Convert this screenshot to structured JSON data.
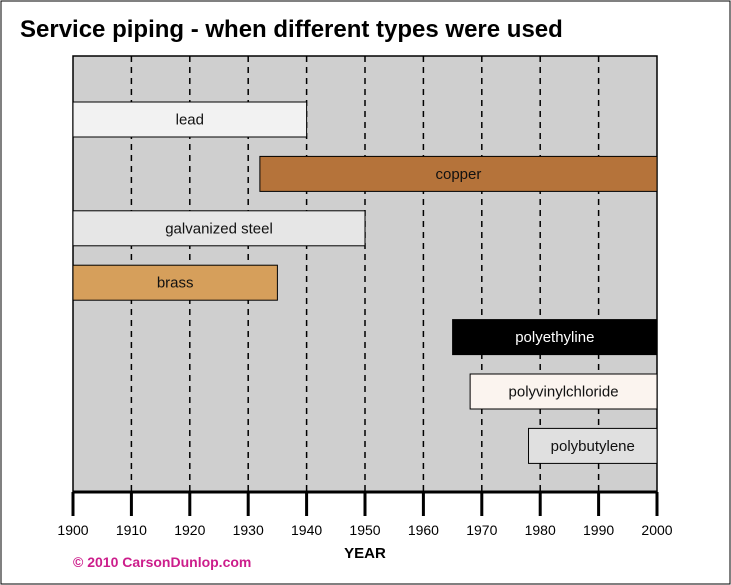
{
  "chart_data": {
    "type": "gantt",
    "title": "Service piping - when different types were used",
    "xlabel": "YEAR",
    "xlim": [
      1900,
      2000
    ],
    "xticks": [
      1900,
      1910,
      1920,
      1930,
      1940,
      1950,
      1960,
      1970,
      1980,
      1990,
      2000
    ],
    "grid": "vertical-dashed",
    "bars": [
      {
        "label": "lead",
        "start": 1900,
        "end": 1940,
        "color": "#f2f2f2",
        "text_color": "#111111"
      },
      {
        "label": "copper",
        "start": 1932,
        "end": 2000,
        "color": "#b5733a",
        "text_color": "#111111"
      },
      {
        "label": "galvanized steel",
        "start": 1900,
        "end": 1950,
        "color": "#e6e6e6",
        "text_color": "#111111"
      },
      {
        "label": "brass",
        "start": 1900,
        "end": 1935,
        "color": "#d69f5b",
        "text_color": "#111111"
      },
      {
        "label": "polyethyline",
        "start": 1965,
        "end": 2000,
        "color": "#000000",
        "text_color": "#ffffff"
      },
      {
        "label": "polyvinylchloride",
        "start": 1968,
        "end": 2000,
        "color": "#fbf4ef",
        "text_color": "#111111"
      },
      {
        "label": "polybutylene",
        "start": 1978,
        "end": 2000,
        "color": "#e0e0e0",
        "text_color": "#111111"
      }
    ]
  },
  "copyright": "© 2010 CarsonDunlop.com",
  "colors": {
    "plot_background": "#cfcfcf",
    "grid": "#000000",
    "copyright": "#cc1d8b"
  }
}
